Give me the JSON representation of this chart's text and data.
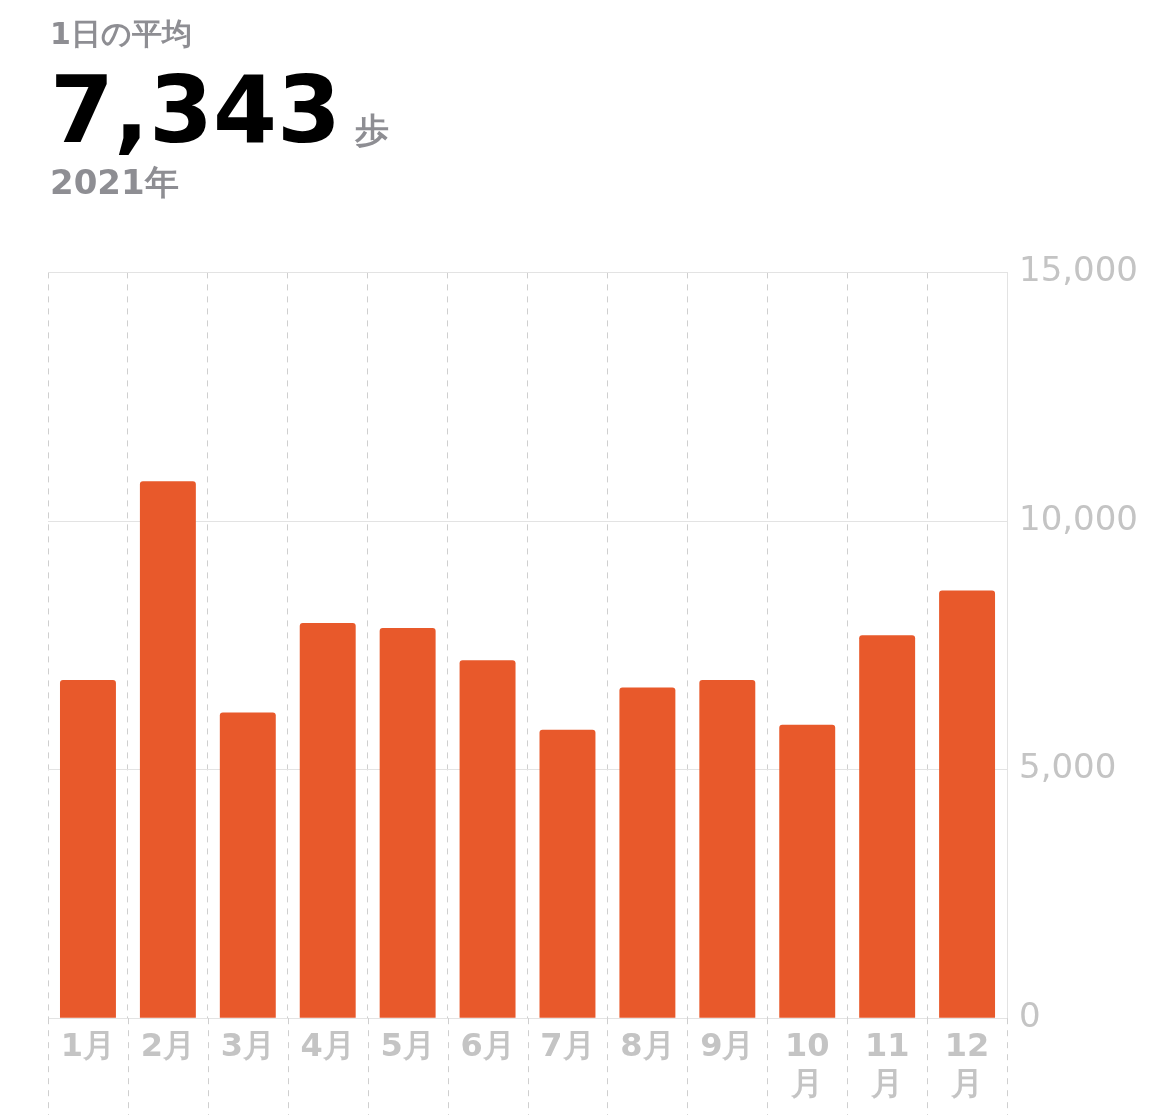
{
  "chart_data": {
    "type": "bar",
    "title": "1日の平均",
    "subtitle": "2021年",
    "annotations": [
      "7,343",
      "歩"
    ],
    "categories": [
      "1月",
      "2月",
      "3月",
      "4月",
      "5月",
      "6月",
      "7月",
      "8月",
      "9月",
      "10月",
      "11月",
      "12月"
    ],
    "values": [
      6800,
      10800,
      6150,
      7950,
      7850,
      7200,
      5800,
      6650,
      6800,
      5900,
      7700,
      8600
    ],
    "color": "#e8592b",
    "ylim": [
      0,
      15000
    ],
    "yticks": [
      0,
      {
        "value": 5000,
        "label": "5,000"
      },
      {
        "value": 10000,
        "label": "10,000"
      },
      {
        "value": 15000,
        "label": "15,000"
      }
    ],
    "grid": true
  }
}
